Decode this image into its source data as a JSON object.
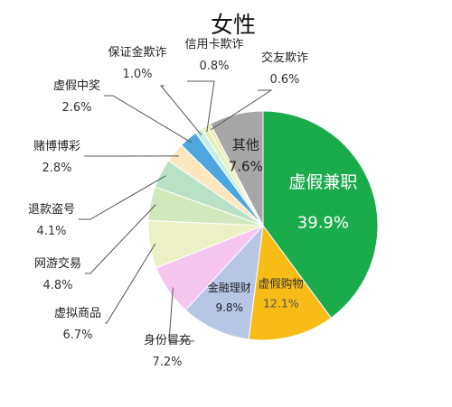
{
  "chart_data": {
    "type": "pie",
    "title": "女性",
    "slices": [
      {
        "label": "虚假兼职",
        "value": 39.9,
        "display": "39.9%",
        "color": "#1aab4a"
      },
      {
        "label": "虚假购物",
        "value": 12.1,
        "display": "12.1%",
        "color": "#f8bc16"
      },
      {
        "label": "金融理财",
        "value": 9.8,
        "display": "9.8%",
        "color": "#b6c6e4"
      },
      {
        "label": "身份冒充",
        "value": 7.2,
        "display": "7.2%",
        "color": "#f6c6ee"
      },
      {
        "label": "虚拟商品",
        "value": 6.7,
        "display": "6.7%",
        "color": "#ebf1c4"
      },
      {
        "label": "网游交易",
        "value": 4.8,
        "display": "4.8%",
        "color": "#d1e8bc"
      },
      {
        "label": "退款盗号",
        "value": 4.1,
        "display": "4.1%",
        "color": "#b9e1c6"
      },
      {
        "label": "赌博博彩",
        "value": 2.8,
        "display": "2.8%",
        "color": "#fbe7bd"
      },
      {
        "label": "虚假中奖",
        "value": 2.6,
        "display": "2.6%",
        "color": "#4ea6de"
      },
      {
        "label": "保证金欺诈",
        "value": 1.0,
        "display": "1.0%",
        "color": "#c6eee4"
      },
      {
        "label": "信用卡欺诈",
        "value": 0.8,
        "display": "0.8%",
        "color": "#dff2b4"
      },
      {
        "label": "交友欺诈",
        "value": 0.6,
        "display": "0.6%",
        "color": "#eeeab2"
      },
      {
        "label": "其他",
        "value": 7.6,
        "display": "7.6%",
        "color": "#a6a6a6"
      }
    ]
  }
}
